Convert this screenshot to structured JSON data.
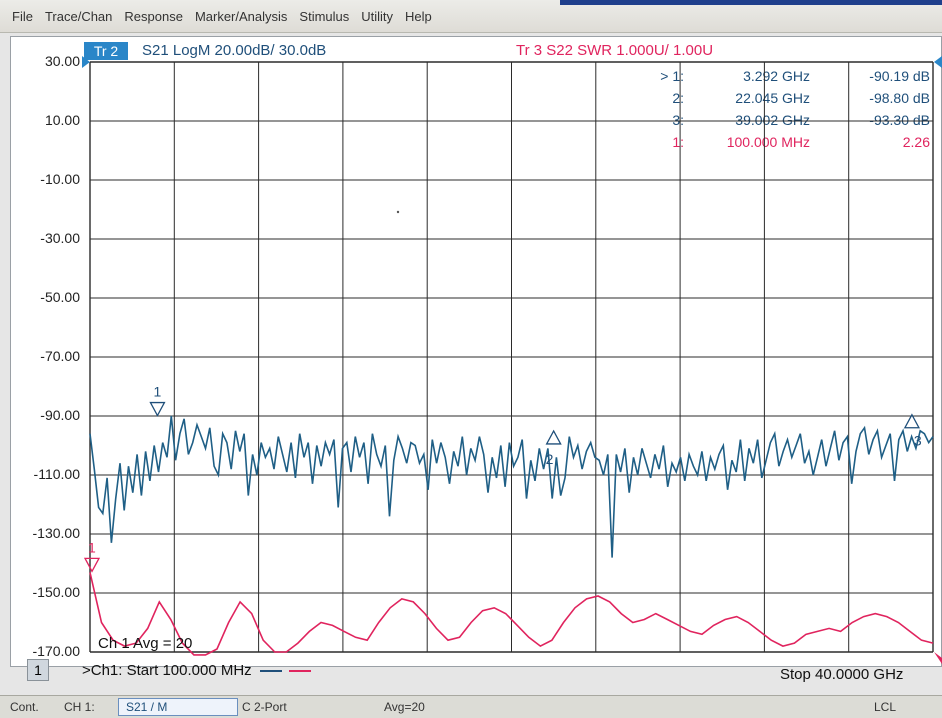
{
  "menu": [
    "File",
    "Trace/Chan",
    "Response",
    "Marker/Analysis",
    "Stimulus",
    "Utility",
    "Help"
  ],
  "trace2": {
    "tag": "Tr 2",
    "label": "S21 LogM 20.00dB/ 30.0dB"
  },
  "trace3": {
    "label": "Tr 3  S22 SWR 1.000U/  1.00U"
  },
  "markers": [
    {
      "id": "> 1:",
      "freq": "3.292 GHz",
      "value": "-90.19 dB",
      "color": "#1f4f7a"
    },
    {
      "id": "2:",
      "freq": "22.045 GHz",
      "value": "-98.80 dB",
      "color": "#1f4f7a"
    },
    {
      "id": "3:",
      "freq": "39.002 GHz",
      "value": "-93.30 dB",
      "color": "#1f4f7a"
    },
    {
      "id": "1:",
      "freq": "100.000 MHz",
      "value": "2.26",
      "color": "#e0245e"
    }
  ],
  "y_ticks": [
    "30.00",
    "10.00",
    "-10.00",
    "-30.00",
    "-50.00",
    "-70.00",
    "-90.00",
    "-110.00",
    "-130.00",
    "-150.00",
    "-170.00"
  ],
  "avg_label": "Ch 1 Avg =   20",
  "channel_num": "1",
  "start_label": ">Ch1: Start  100.000 MHz",
  "stop_label": "Stop  40.0000 GHz",
  "status": {
    "mode": "Cont.",
    "ch": "CH 1:",
    "param": "S21 / M",
    "port": "C  2-Port",
    "avg": "Avg=20",
    "lcl": "LCL"
  },
  "marker_flags": [
    "1",
    "2",
    "3",
    "1"
  ],
  "chart_data": {
    "type": "line",
    "x_start": "100.000 MHz",
    "x_stop": "40.0000 GHz",
    "ylim": [
      -170,
      30
    ],
    "y_per_div": 20,
    "grid": true,
    "series": [
      {
        "name": "S21 LogM",
        "color": "#1f5f86",
        "axis": "dB",
        "values": [
          -96,
          -108,
          -121,
          -123,
          -111,
          -133,
          -118,
          -106,
          -122,
          -107,
          -116,
          -103,
          -117,
          -102,
          -112,
          -100,
          -109,
          -99,
          -104,
          -90,
          -105,
          -96,
          -91,
          -103,
          -99,
          -93,
          -97,
          -101,
          -94,
          -107,
          -110,
          -96,
          -99,
          -108,
          -95,
          -102,
          -96,
          -117,
          -103,
          -110,
          -99,
          -104,
          -101,
          -108,
          -97,
          -103,
          -109,
          -99,
          -111,
          -96,
          -104,
          -99,
          -113,
          -100,
          -107,
          -99,
          -103,
          -98,
          -121,
          -101,
          -99,
          -109,
          -97,
          -104,
          -99,
          -113,
          -96,
          -103,
          -107,
          -100,
          -124,
          -105,
          -97,
          -101,
          -106,
          -99,
          -100,
          -106,
          -103,
          -115,
          -98,
          -106,
          -99,
          -104,
          -113,
          -102,
          -107,
          -97,
          -110,
          -101,
          -105,
          -97,
          -103,
          -116,
          -104,
          -111,
          -100,
          -114,
          -99,
          -107,
          -104,
          -98,
          -118,
          -105,
          -112,
          -101,
          -108,
          -101,
          -118,
          -104,
          -117,
          -111,
          -97,
          -104,
          -100,
          -108,
          -102,
          -99,
          -104,
          -105,
          -110,
          -103,
          -138,
          -103,
          -109,
          -101,
          -116,
          -104,
          -110,
          -101,
          -106,
          -111,
          -103,
          -108,
          -100,
          -114,
          -106,
          -109,
          -104,
          -112,
          -103,
          -107,
          -110,
          -102,
          -112,
          -104,
          -108,
          -103,
          -100,
          -115,
          -105,
          -109,
          -98,
          -112,
          -101,
          -106,
          -98,
          -111,
          -105,
          -99,
          -96,
          -107,
          -102,
          -98,
          -104,
          -100,
          -96,
          -106,
          -102,
          -110,
          -104,
          -98,
          -107,
          -101,
          -95,
          -105,
          -99,
          -97,
          -113,
          -102,
          -96,
          -94,
          -103,
          -98,
          -95,
          -104,
          -100,
          -96,
          -112,
          -98,
          -95,
          -102,
          -97,
          -101,
          -95,
          -96,
          -99,
          -97
        ]
      },
      {
        "name": "S22 SWR",
        "color": "#e0245e",
        "axis": "U",
        "values": [
          -143,
          -160,
          -166,
          -168,
          -167,
          -162,
          -153,
          -159,
          -167,
          -171,
          -171,
          -169,
          -160,
          -153,
          -157,
          -166,
          -170,
          -170,
          -167,
          -163,
          -160,
          -161,
          -163,
          -165,
          -166,
          -160,
          -155,
          -152,
          -153,
          -157,
          -162,
          -166,
          -165,
          -160,
          -156,
          -155,
          -157,
          -161,
          -165,
          -168,
          -166,
          -160,
          -155,
          -152,
          -151,
          -153,
          -157,
          -160,
          -159,
          -157,
          -159,
          -161,
          -163,
          -164,
          -161,
          -159,
          -158,
          -160,
          -163,
          -166,
          -168,
          -167,
          -164,
          -163,
          -162,
          -163,
          -160,
          -158,
          -157,
          -158,
          -160,
          -163,
          -166,
          -167
        ]
      }
    ]
  }
}
